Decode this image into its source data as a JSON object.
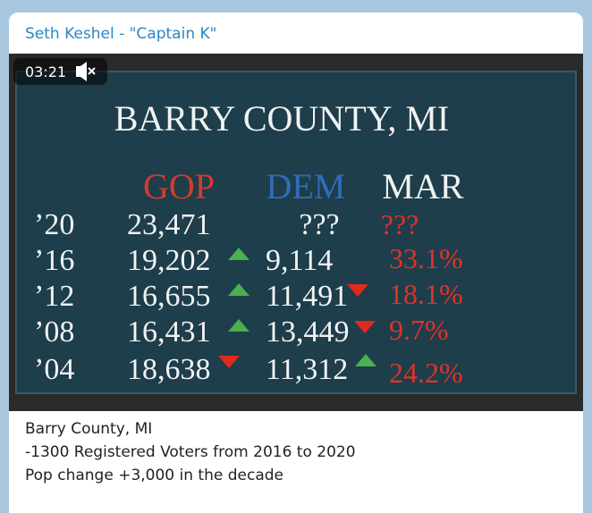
{
  "post": {
    "author": "Seth Keshel - \"Captain K\"",
    "video": {
      "duration": "03:21",
      "title": "BARRY COUNTY, MI",
      "columns": [
        "GOP",
        "DEM",
        "MAR"
      ],
      "rows": [
        [
          "’20",
          "23,471",
          "???",
          "???"
        ],
        [
          "’16",
          "19,202",
          "9,114",
          "33.1%"
        ],
        [
          "’12",
          "16,655",
          "11,491",
          "18.1%"
        ],
        [
          "’08",
          "16,431",
          "13,449",
          "9.7%"
        ],
        [
          "’04",
          "18,638",
          "11,312",
          "24.2%"
        ]
      ]
    },
    "caption": [
      "Barry County, MI",
      "-1300 Registered Voters from 2016 to 2020",
      "Pop change +3,000 in the decade"
    ]
  }
}
